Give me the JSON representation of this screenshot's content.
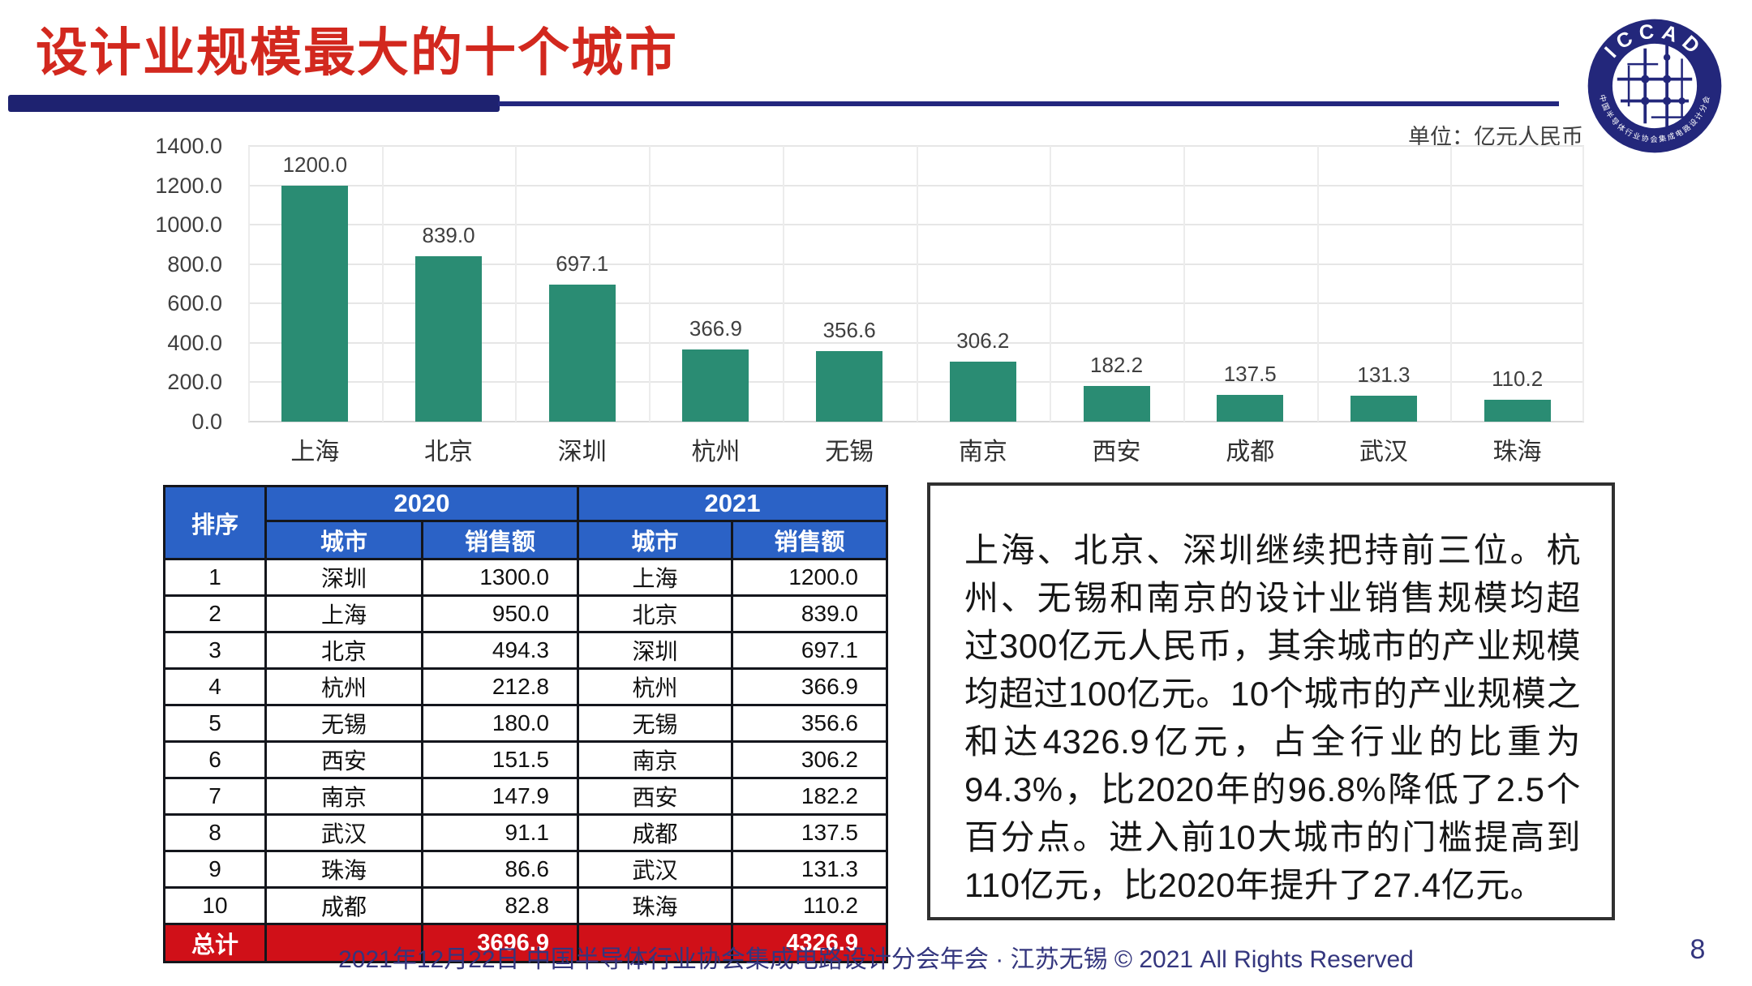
{
  "slide": {
    "title": "设计业规模最大的十个城市",
    "unit_label": "单位：亿元人民币",
    "footer": "2021年12月22日 中国半导体行业协会集成电路设计分会年会 · 江苏无锡 © 2021 All Rights Reserved",
    "page_number": "8"
  },
  "logo": {
    "text": "ICCAD",
    "subtext": "中国半导体行业协会集成电路设计分会",
    "color": "#23277B"
  },
  "colors": {
    "title_red": "#D2281E",
    "divider_navy": "#1E2270",
    "bar_teal": "#2A8C73",
    "grid_gray": "#E6E6E6",
    "table_header_blue": "#2B62C6",
    "total_row_red": "#D01018",
    "footer_navy": "#34367E"
  },
  "chart_data": {
    "type": "bar",
    "title": "",
    "xlabel": "",
    "ylabel": "",
    "unit": "亿元人民币",
    "categories": [
      "上海",
      "北京",
      "深圳",
      "杭州",
      "无锡",
      "南京",
      "西安",
      "成都",
      "武汉",
      "珠海"
    ],
    "values": [
      1200.0,
      839.0,
      697.1,
      366.9,
      356.6,
      306.2,
      182.2,
      137.5,
      131.3,
      110.2
    ],
    "data_labels": [
      "1200.0",
      "839.0",
      "697.1",
      "366.9",
      "356.6",
      "306.2",
      "182.2",
      "137.5",
      "131.3",
      "110.2"
    ],
    "ylim": [
      0,
      1400
    ],
    "ytick_step": 200,
    "ytick_labels": [
      "0.0",
      "200.0",
      "400.0",
      "600.0",
      "800.0",
      "1000.0",
      "1200.0",
      "1400.0"
    ],
    "grid": true,
    "legend_position": "none",
    "bar_color": "#2A8C73"
  },
  "table": {
    "corner_header": "排序",
    "year_headers": [
      "2020",
      "2021"
    ],
    "sub_headers": [
      "城市",
      "销售额"
    ],
    "rows": [
      [
        "1",
        "深圳",
        "1300.0",
        "上海",
        "1200.0"
      ],
      [
        "2",
        "上海",
        "950.0",
        "北京",
        "839.0"
      ],
      [
        "3",
        "北京",
        "494.3",
        "深圳",
        "697.1"
      ],
      [
        "4",
        "杭州",
        "212.8",
        "杭州",
        "366.9"
      ],
      [
        "5",
        "无锡",
        "180.0",
        "无锡",
        "356.6"
      ],
      [
        "6",
        "西安",
        "151.5",
        "南京",
        "306.2"
      ],
      [
        "7",
        "南京",
        "147.9",
        "西安",
        "182.2"
      ],
      [
        "8",
        "武汉",
        "91.1",
        "成都",
        "137.5"
      ],
      [
        "9",
        "珠海",
        "86.6",
        "武汉",
        "131.3"
      ],
      [
        "10",
        "成都",
        "82.8",
        "珠海",
        "110.2"
      ]
    ],
    "total": {
      "label": "总计",
      "sales_2020": "3696.9",
      "sales_2021": "4326.9"
    }
  },
  "commentary": {
    "text": "上海、北京、深圳继续把持前三位。杭州、无锡和南京的设计业销售规模均超过300亿元人民币，其余城市的产业规模均超过100亿元。10个城市的产业规模之和达4326.9亿元，占全行业的比重为94.3%，比2020年的96.8%降低了2.5个百分点。进入前10大城市的门槛提高到110亿元，比2020年提升了27.4亿元。"
  }
}
